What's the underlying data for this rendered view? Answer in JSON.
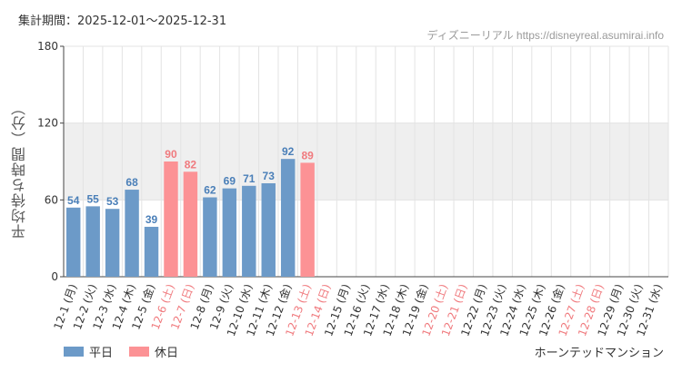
{
  "header": {
    "period": "集計期間：2025-12-01～2025-12-31",
    "credit": "ディズニーリアル https://disneyreal.asumirai.info"
  },
  "footer": {
    "attraction": "ホーンテッドマンション"
  },
  "colors": {
    "weekday": "#6c9ac8",
    "holiday": "#fc9295",
    "weekday_text": "#4a7fb8",
    "holiday_text": "#f07a7e",
    "band": "#efefef",
    "grid": "#e3e3e3"
  },
  "chart_data": {
    "type": "bar",
    "title": "",
    "ylabel": "平均待ち時間（分）",
    "xlabel": "",
    "ylim": [
      0,
      180
    ],
    "yticks": [
      0,
      60,
      120,
      180
    ],
    "band": [
      60,
      120
    ],
    "grid": true,
    "legend_position": "bottom-left",
    "legend": [
      {
        "name": "平日",
        "kind": "weekday"
      },
      {
        "name": "休日",
        "kind": "holiday"
      }
    ],
    "categories": [
      "12-1 (月)",
      "12-2 (火)",
      "12-3 (水)",
      "12-4 (木)",
      "12-5 (金)",
      "12-6 (土)",
      "12-7 (日)",
      "12-8 (月)",
      "12-9 (火)",
      "12-10 (水)",
      "12-11 (木)",
      "12-12 (金)",
      "12-13 (土)",
      "12-14 (日)",
      "12-15 (月)",
      "12-16 (火)",
      "12-17 (水)",
      "12-18 (木)",
      "12-19 (金)",
      "12-20 (土)",
      "12-21 (日)",
      "12-22 (月)",
      "12-23 (火)",
      "12-24 (水)",
      "12-25 (木)",
      "12-26 (金)",
      "12-27 (土)",
      "12-28 (日)",
      "12-29 (月)",
      "12-30 (火)",
      "12-31 (水)"
    ],
    "holiday": [
      false,
      false,
      false,
      false,
      false,
      true,
      true,
      false,
      false,
      false,
      false,
      false,
      true,
      true,
      false,
      false,
      false,
      false,
      false,
      true,
      true,
      false,
      false,
      false,
      false,
      false,
      true,
      true,
      false,
      false,
      false
    ],
    "values": [
      54,
      55,
      53,
      68,
      39,
      90,
      82,
      62,
      69,
      71,
      73,
      92,
      89,
      null,
      null,
      null,
      null,
      null,
      null,
      null,
      null,
      null,
      null,
      null,
      null,
      null,
      null,
      null,
      null,
      null,
      null
    ]
  }
}
